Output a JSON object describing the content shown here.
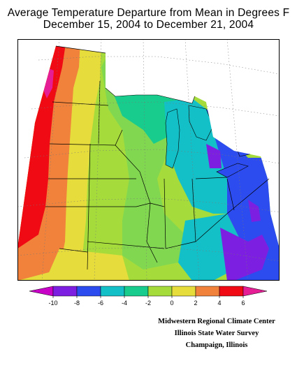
{
  "title": {
    "line1": "Average Temperature Departure from Mean in Degrees F",
    "line2": "December 15, 2004 to December 21, 2004"
  },
  "legend": {
    "units": "Degrees F",
    "bins": [
      {
        "min": -12,
        "max": -10,
        "color": "#c800c8"
      },
      {
        "min": -10,
        "max": -8,
        "color": "#7d1fe0"
      },
      {
        "min": -8,
        "max": -6,
        "color": "#2c4cf0"
      },
      {
        "min": -6,
        "max": -4,
        "color": "#14c0c8"
      },
      {
        "min": -4,
        "max": -2,
        "color": "#17cc8c"
      },
      {
        "min": -2,
        "max": 0,
        "color": "#a5dc3c"
      },
      {
        "min": 0,
        "max": 2,
        "color": "#e6dc3c"
      },
      {
        "min": 2,
        "max": 4,
        "color": "#f0823c"
      },
      {
        "min": 4,
        "max": 6,
        "color": "#f00a14"
      },
      {
        "min": 6,
        "max": 8,
        "color": "#e61e96"
      }
    ],
    "tick_labels": [
      "-10",
      "-8",
      "-6",
      "-4",
      "-2",
      "0",
      "2",
      "4",
      "6"
    ]
  },
  "credits": {
    "line1": "Midwestern Regional Climate Center",
    "line2": "Illinois State Water Survey",
    "line3": "Champaign, Illinois"
  }
}
